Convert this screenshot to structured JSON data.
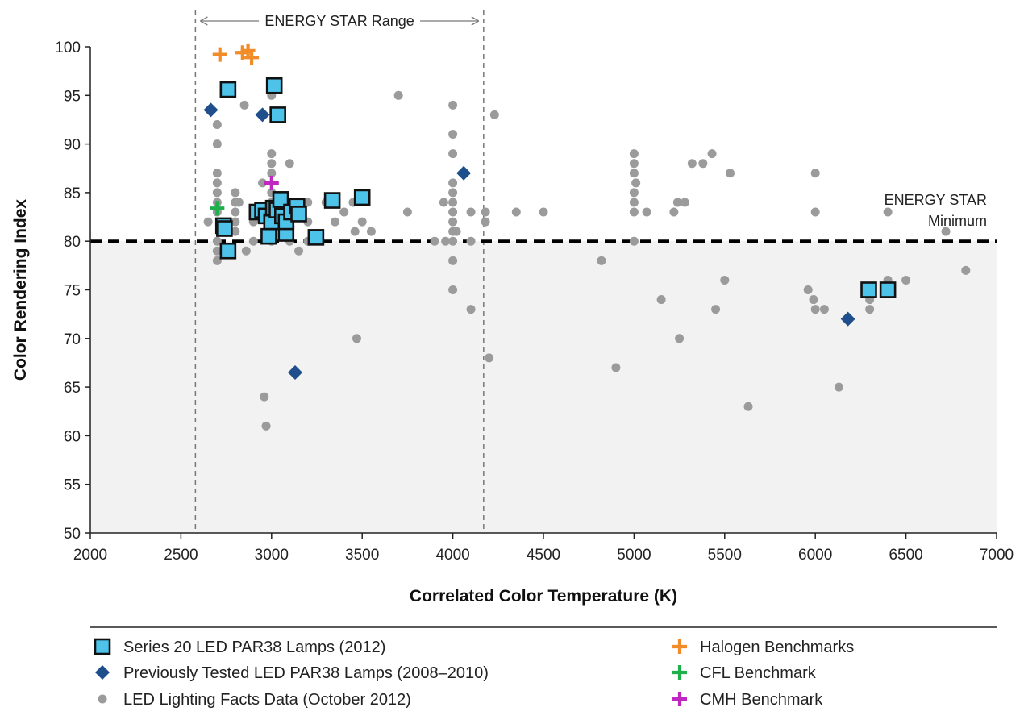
{
  "chart_data": {
    "type": "scatter",
    "title": "",
    "xlabel": "Correlated Color Temperature (K)",
    "ylabel": "Color Rendering Index",
    "xlim": [
      2000,
      7000
    ],
    "ylim": [
      50,
      100
    ],
    "xticks": [
      2000,
      2500,
      3000,
      3500,
      4000,
      4500,
      5000,
      5500,
      6000,
      6500,
      7000
    ],
    "yticks": [
      50,
      55,
      60,
      65,
      70,
      75,
      80,
      85,
      90,
      95,
      100
    ],
    "grid": false,
    "legend_position": "bottom",
    "annotations": {
      "range_label": "ENERGY STAR Range",
      "range_x": [
        2580,
        4170
      ],
      "minimum_label_line1": "ENERGY STAR",
      "minimum_label_line2": "Minimum",
      "minimum_y": 80
    },
    "series": [
      {
        "name": "LED Lighting Facts Data (October 2012)",
        "marker": "circle",
        "color": "#9b9b9b",
        "points": [
          [
            2650,
            82
          ],
          [
            2700,
            92
          ],
          [
            2700,
            90
          ],
          [
            2700,
            87
          ],
          [
            2700,
            86
          ],
          [
            2700,
            85
          ],
          [
            2700,
            84
          ],
          [
            2700,
            83
          ],
          [
            2700,
            80
          ],
          [
            2700,
            79
          ],
          [
            2700,
            78
          ],
          [
            2720,
            82
          ],
          [
            2750,
            81
          ],
          [
            2800,
            85
          ],
          [
            2800,
            84
          ],
          [
            2800,
            83
          ],
          [
            2800,
            82
          ],
          [
            2800,
            81
          ],
          [
            2820,
            84
          ],
          [
            2850,
            94
          ],
          [
            2860,
            79
          ],
          [
            2900,
            82
          ],
          [
            2900,
            80
          ],
          [
            2950,
            86
          ],
          [
            2960,
            64
          ],
          [
            2970,
            61
          ],
          [
            3000,
            95
          ],
          [
            3000,
            89
          ],
          [
            3000,
            88
          ],
          [
            3000,
            87
          ],
          [
            3000,
            85
          ],
          [
            3000,
            84
          ],
          [
            3000,
            80
          ],
          [
            3050,
            83
          ],
          [
            3100,
            88
          ],
          [
            3100,
            80
          ],
          [
            3150,
            79
          ],
          [
            3200,
            84
          ],
          [
            3200,
            82
          ],
          [
            3200,
            80
          ],
          [
            3300,
            84
          ],
          [
            3350,
            82
          ],
          [
            3400,
            83
          ],
          [
            3450,
            84
          ],
          [
            3460,
            81
          ],
          [
            3470,
            70
          ],
          [
            3500,
            82
          ],
          [
            3550,
            81
          ],
          [
            3700,
            95
          ],
          [
            3750,
            83
          ],
          [
            3900,
            80
          ],
          [
            3950,
            84
          ],
          [
            3960,
            80
          ],
          [
            4000,
            94
          ],
          [
            4000,
            91
          ],
          [
            4000,
            89
          ],
          [
            4000,
            86
          ],
          [
            4000,
            85
          ],
          [
            4000,
            84
          ],
          [
            4000,
            83
          ],
          [
            4000,
            82
          ],
          [
            4000,
            81
          ],
          [
            4000,
            80
          ],
          [
            4000,
            78
          ],
          [
            4000,
            75
          ],
          [
            4020,
            81
          ],
          [
            4100,
            83
          ],
          [
            4100,
            80
          ],
          [
            4100,
            73
          ],
          [
            4180,
            83
          ],
          [
            4180,
            82
          ],
          [
            4200,
            68
          ],
          [
            4230,
            93
          ],
          [
            4350,
            83
          ],
          [
            4500,
            83
          ],
          [
            4820,
            78
          ],
          [
            4900,
            67
          ],
          [
            5000,
            89
          ],
          [
            5000,
            88
          ],
          [
            5000,
            87
          ],
          [
            5000,
            85
          ],
          [
            5000,
            84
          ],
          [
            5000,
            83
          ],
          [
            5000,
            80
          ],
          [
            5010,
            86
          ],
          [
            5070,
            83
          ],
          [
            5150,
            74
          ],
          [
            5220,
            83
          ],
          [
            5240,
            84
          ],
          [
            5250,
            70
          ],
          [
            5280,
            84
          ],
          [
            5320,
            88
          ],
          [
            5380,
            88
          ],
          [
            5430,
            89
          ],
          [
            5450,
            73
          ],
          [
            5500,
            76
          ],
          [
            5530,
            87
          ],
          [
            5630,
            63
          ],
          [
            5960,
            75
          ],
          [
            5990,
            74
          ],
          [
            6000,
            87
          ],
          [
            6000,
            83
          ],
          [
            6000,
            73
          ],
          [
            6050,
            73
          ],
          [
            6130,
            65
          ],
          [
            6300,
            74
          ],
          [
            6300,
            73
          ],
          [
            6400,
            83
          ],
          [
            6400,
            76
          ],
          [
            6500,
            76
          ],
          [
            6720,
            81
          ],
          [
            6830,
            77
          ]
        ]
      },
      {
        "name": "Series 20 LED PAR38 Lamps (2012)",
        "marker": "square",
        "color": "#4dc3ea",
        "points": [
          [
            2760,
            95.6
          ],
          [
            3015,
            96
          ],
          [
            3035,
            93
          ],
          [
            2735,
            81.6
          ],
          [
            2740,
            81.3
          ],
          [
            2760,
            79
          ],
          [
            2920,
            83
          ],
          [
            2950,
            83.2
          ],
          [
            2970,
            82.6
          ],
          [
            2985,
            80.5
          ],
          [
            3000,
            82
          ],
          [
            3010,
            83.4
          ],
          [
            3030,
            83.2
          ],
          [
            3050,
            84.3
          ],
          [
            3060,
            82.6
          ],
          [
            3080,
            80.8
          ],
          [
            3080,
            82
          ],
          [
            3110,
            83
          ],
          [
            3140,
            83.6
          ],
          [
            3150,
            82.8
          ],
          [
            3245,
            80.4
          ],
          [
            3335,
            84.2
          ],
          [
            3500,
            84.5
          ],
          [
            6295,
            75
          ],
          [
            6400,
            75
          ]
        ]
      },
      {
        "name": "Previously Tested  LED PAR38 Lamps (2008–2010)",
        "marker": "diamond",
        "color": "#1f4e8c",
        "points": [
          [
            2665,
            93.5
          ],
          [
            2950,
            93
          ],
          [
            3130,
            66.5
          ],
          [
            4060,
            87
          ],
          [
            6180,
            72
          ]
        ]
      },
      {
        "name": "Halogen Benchmarks",
        "marker": "plus",
        "color": "#f28c28",
        "points": [
          [
            2715,
            99.2
          ],
          [
            2840,
            99.4
          ],
          [
            2870,
            99.6
          ],
          [
            2890,
            98.9
          ]
        ]
      },
      {
        "name": "CFL Benchmark",
        "marker": "plus",
        "color": "#1fb04c",
        "points": [
          [
            2700,
            83.4
          ]
        ]
      },
      {
        "name": "CMH Benchmark",
        "marker": "plus",
        "color": "#c026c0",
        "points": [
          [
            3000,
            86
          ]
        ]
      }
    ]
  },
  "legend": {
    "items": [
      {
        "label": "Series 20 LED PAR38 Lamps (2012)"
      },
      {
        "label": "Previously Tested  LED PAR38 Lamps (2008–2010)"
      },
      {
        "label": "LED Lighting Facts Data (October 2012)"
      },
      {
        "label": "Halogen Benchmarks"
      },
      {
        "label": "CFL Benchmark"
      },
      {
        "label": "CMH Benchmark"
      }
    ]
  }
}
